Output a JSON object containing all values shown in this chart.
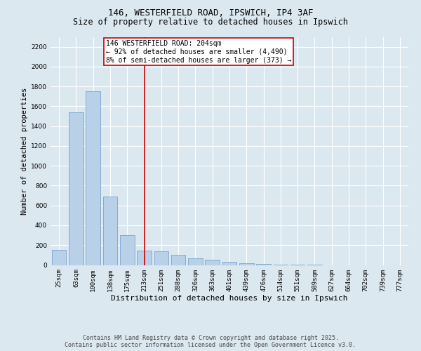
{
  "title_line1": "146, WESTERFIELD ROAD, IPSWICH, IP4 3AF",
  "title_line2": "Size of property relative to detached houses in Ipswich",
  "xlabel": "Distribution of detached houses by size in Ipswich",
  "ylabel": "Number of detached properties",
  "categories": [
    "25sqm",
    "63sqm",
    "100sqm",
    "138sqm",
    "175sqm",
    "213sqm",
    "251sqm",
    "288sqm",
    "326sqm",
    "363sqm",
    "401sqm",
    "439sqm",
    "476sqm",
    "514sqm",
    "551sqm",
    "589sqm",
    "627sqm",
    "664sqm",
    "702sqm",
    "739sqm",
    "777sqm"
  ],
  "values": [
    150,
    1540,
    1750,
    690,
    300,
    145,
    135,
    100,
    65,
    55,
    35,
    20,
    10,
    5,
    2,
    1,
    0,
    0,
    0,
    0,
    0
  ],
  "bar_color": "#b8d0e8",
  "bar_edge_color": "#6699cc",
  "vline_x": 5,
  "vline_color": "#cc0000",
  "annotation_text": "146 WESTERFIELD ROAD: 204sqm\n← 92% of detached houses are smaller (4,490)\n8% of semi-detached houses are larger (373) →",
  "annotation_box_facecolor": "#ffffff",
  "annotation_box_edgecolor": "#cc0000",
  "ylim": [
    0,
    2300
  ],
  "yticks": [
    0,
    200,
    400,
    600,
    800,
    1000,
    1200,
    1400,
    1600,
    1800,
    2000,
    2200
  ],
  "bg_color": "#dce8f0",
  "footer_line1": "Contains HM Land Registry data © Crown copyright and database right 2025.",
  "footer_line2": "Contains public sector information licensed under the Open Government Licence v3.0.",
  "title_fontsize": 9,
  "ylabel_fontsize": 7.5,
  "xlabel_fontsize": 8,
  "tick_fontsize": 6.5,
  "annotation_fontsize": 7,
  "footer_fontsize": 6
}
